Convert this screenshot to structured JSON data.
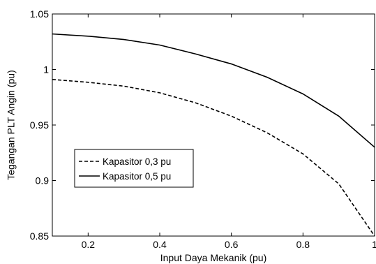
{
  "chart_data": {
    "type": "line",
    "xlabel": "Input Daya Mekanik (pu)",
    "ylabel": "Tegangan PLT Angin (pu)",
    "xlim": [
      0.1,
      1.0
    ],
    "ylim": [
      0.85,
      1.05
    ],
    "x_ticks": [
      0.2,
      0.4,
      0.6,
      0.8,
      1.0
    ],
    "x_tick_labels": [
      "0.2",
      "0.4",
      "0.6",
      "0.8",
      "1"
    ],
    "y_ticks": [
      0.85,
      0.9,
      0.95,
      1.0,
      1.05
    ],
    "y_tick_labels": [
      "0.85",
      "0.9",
      "0.95",
      "1",
      "1.05"
    ],
    "grid": false,
    "legend_position": "left",
    "x": [
      0.1,
      0.2,
      0.3,
      0.4,
      0.5,
      0.6,
      0.7,
      0.8,
      0.9,
      1.0
    ],
    "series": [
      {
        "name": "Kapasitor 0,3 pu",
        "style": "dashed",
        "color": "#000000",
        "values": [
          0.991,
          0.9885,
          0.985,
          0.979,
          0.97,
          0.958,
          0.943,
          0.924,
          0.897,
          0.85
        ]
      },
      {
        "name": "Kapasitor 0,5 pu",
        "style": "solid",
        "color": "#000000",
        "values": [
          1.032,
          1.03,
          1.027,
          1.022,
          1.014,
          1.005,
          0.993,
          0.978,
          0.958,
          0.93
        ]
      }
    ]
  }
}
